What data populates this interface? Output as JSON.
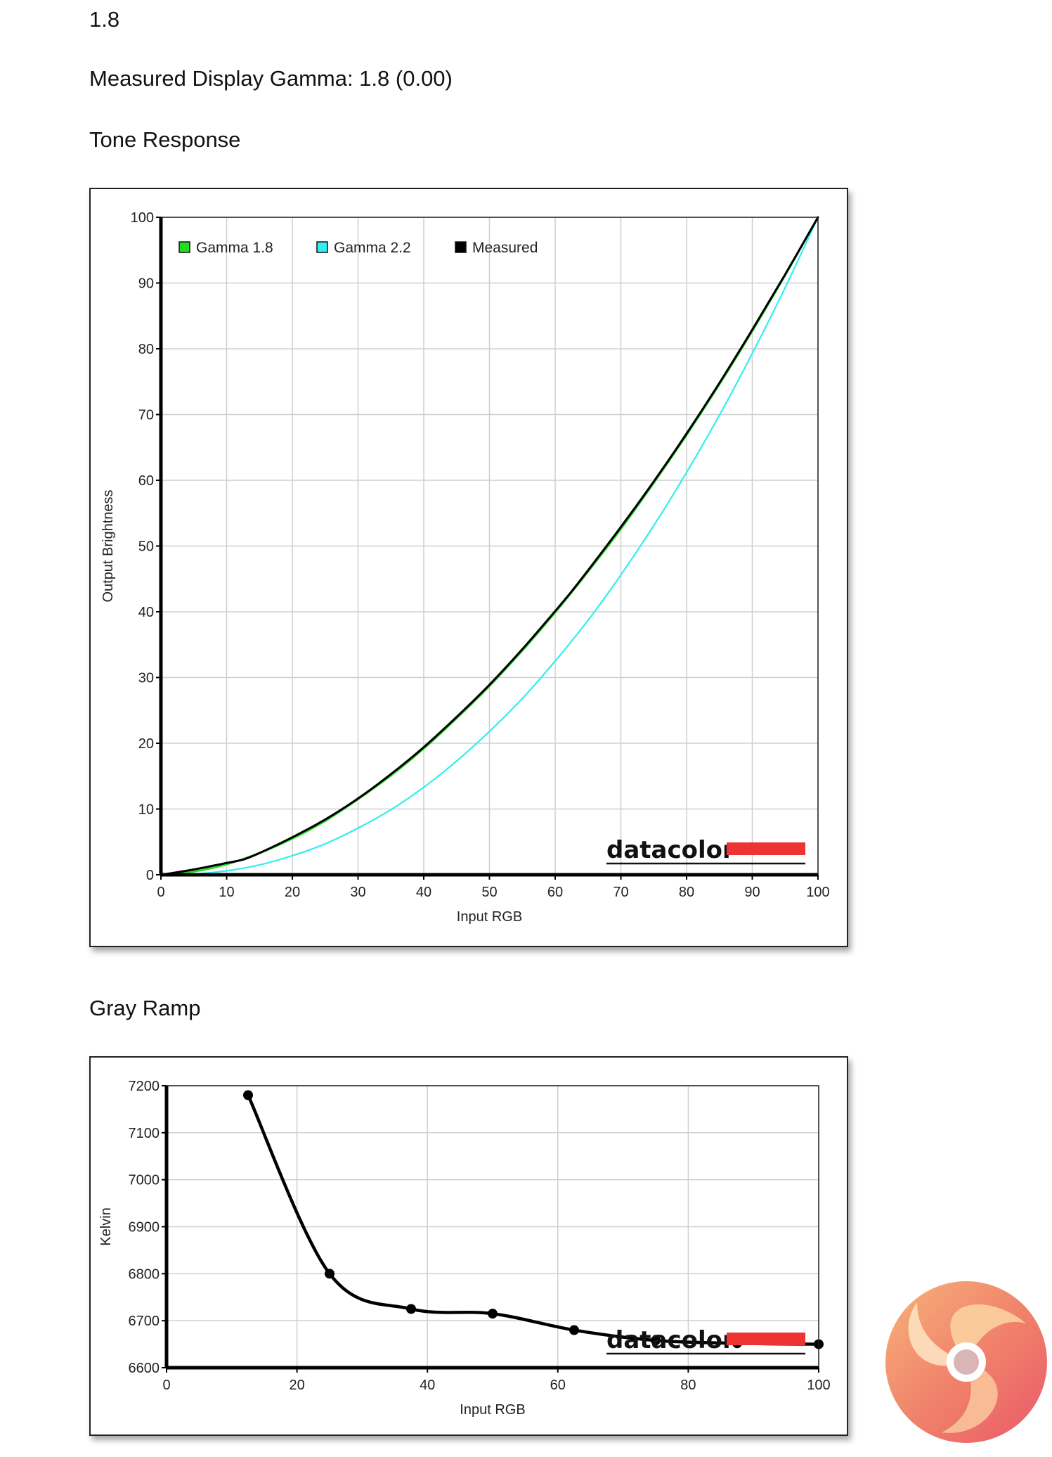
{
  "header": {
    "top_value": "1.8",
    "measured_gamma": "Measured Display Gamma: 1.8 (0.00)",
    "tone_heading": "Tone Response",
    "gray_heading": "Gray Ramp"
  },
  "watermark": "datacolor",
  "chart_data": [
    {
      "type": "line",
      "xlabel": "Input RGB",
      "ylabel": "Output Brightness",
      "xlim": [
        0,
        100
      ],
      "ylim": [
        0,
        100
      ],
      "x_ticks": [
        0,
        10,
        20,
        30,
        40,
        50,
        60,
        70,
        80,
        90,
        100
      ],
      "y_ticks": [
        0,
        10,
        20,
        30,
        40,
        50,
        60,
        70,
        80,
        90,
        100
      ],
      "grid": true,
      "legend_position": "top-left",
      "series": [
        {
          "name": "Gamma 1.8",
          "color": "#22dd22",
          "x": [
            0,
            5,
            10,
            15,
            20,
            25,
            30,
            35,
            40,
            45,
            50,
            55,
            60,
            65,
            70,
            75,
            80,
            85,
            90,
            95,
            100
          ],
          "values": [
            0,
            0.5,
            1.6,
            3.3,
            5.5,
            8.2,
            11.5,
            15.1,
            19.2,
            23.8,
            28.7,
            34.1,
            39.9,
            46.1,
            52.6,
            59.6,
            66.9,
            74.6,
            82.7,
            91.2,
            100
          ]
        },
        {
          "name": "Gamma 2.2",
          "color": "#33eeee",
          "x": [
            0,
            5,
            10,
            15,
            20,
            25,
            30,
            35,
            40,
            45,
            50,
            55,
            60,
            65,
            70,
            75,
            80,
            85,
            90,
            95,
            100
          ],
          "values": [
            0,
            0.1,
            0.6,
            1.5,
            2.9,
            4.7,
            7.1,
            9.9,
            13.3,
            17.3,
            21.8,
            26.8,
            32.5,
            38.7,
            45.6,
            53.1,
            61.2,
            69.9,
            79.3,
            89.3,
            100
          ]
        },
        {
          "name": "Measured",
          "color": "#000000",
          "x": [
            0,
            5,
            10,
            12.5,
            15,
            20,
            25,
            30,
            35,
            40,
            45,
            50,
            55,
            60,
            62.5,
            65,
            70,
            75,
            80,
            85,
            90,
            95,
            100
          ],
          "values": [
            0,
            0.8,
            1.8,
            2.3,
            3.3,
            5.7,
            8.4,
            11.6,
            15.3,
            19.4,
            24.0,
            28.9,
            34.3,
            40.1,
            43.1,
            46.3,
            52.9,
            59.8,
            67.1,
            74.8,
            82.9,
            91.3,
            100
          ]
        }
      ]
    },
    {
      "type": "line",
      "xlabel": "Input RGB",
      "ylabel": "Kelvin",
      "xlim": [
        0,
        100
      ],
      "ylim": [
        6600,
        7200
      ],
      "x_ticks": [
        0,
        20,
        40,
        60,
        80,
        100
      ],
      "y_ticks": [
        6600,
        6700,
        6800,
        6900,
        7000,
        7100,
        7200
      ],
      "grid": true,
      "series": [
        {
          "name": "",
          "color": "#000000",
          "x": [
            12.5,
            25,
            37.5,
            50,
            62.5,
            75,
            87.5,
            100
          ],
          "values": [
            7180,
            6800,
            6725,
            6715,
            6680,
            6658,
            6652,
            6650
          ]
        }
      ]
    }
  ]
}
